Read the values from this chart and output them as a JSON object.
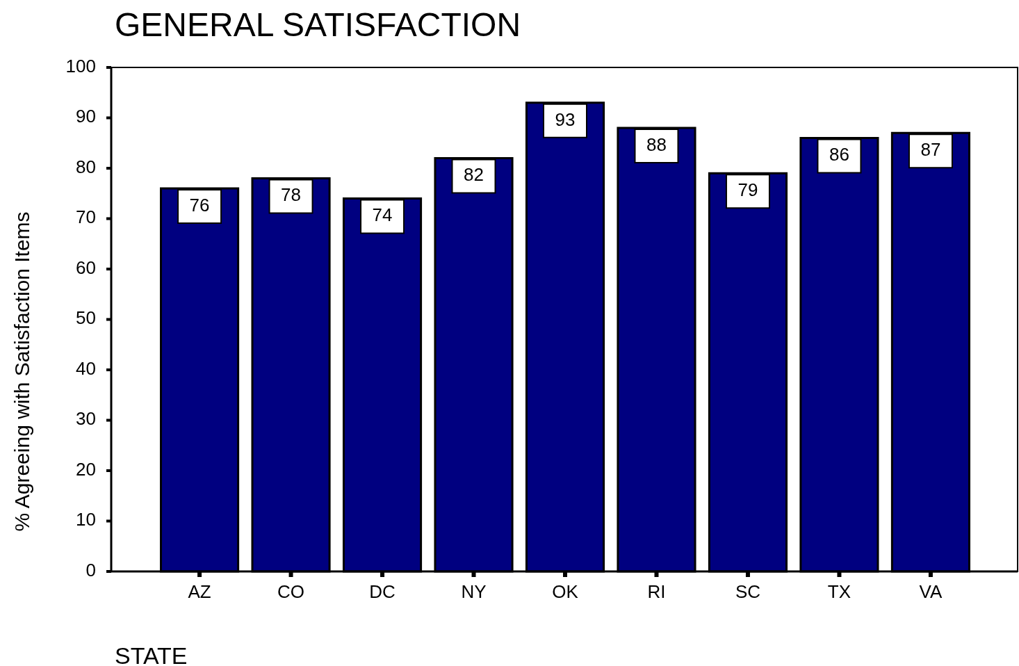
{
  "chart_data": {
    "type": "bar",
    "title": "GENERAL SATISFACTION",
    "xlabel": "STATE",
    "ylabel": "% Agreeing with Satisfaction Items",
    "categories": [
      "AZ",
      "CO",
      "DC",
      "NY",
      "OK",
      "RI",
      "SC",
      "TX",
      "VA"
    ],
    "values": [
      76,
      78,
      74,
      82,
      93,
      88,
      79,
      86,
      87
    ],
    "color": "#000080",
    "ylim": [
      0,
      100
    ],
    "yticks": [
      0,
      10,
      20,
      30,
      40,
      50,
      60,
      70,
      80,
      90,
      100
    ],
    "data_labels": true
  }
}
